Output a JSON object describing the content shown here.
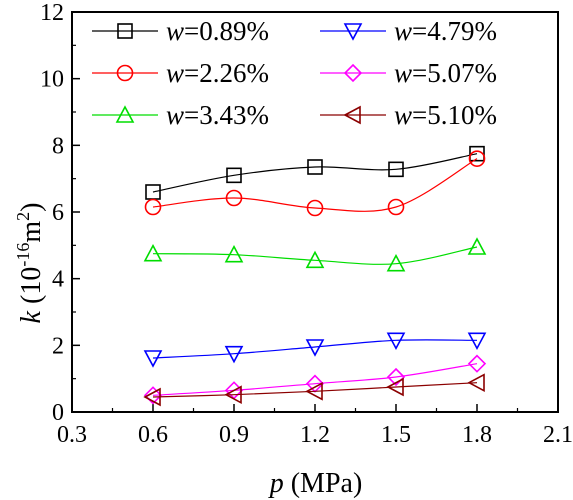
{
  "chart_data": {
    "type": "line",
    "xlabel": {
      "var": "p",
      "unit": " (MPa)"
    },
    "ylabel": {
      "var": "k",
      "unit_open": " (10",
      "exp1": "-16",
      "unit_mid": "m",
      "exp2": "2",
      "unit_close": ")"
    },
    "xlim": [
      0.3,
      2.1
    ],
    "ylim": [
      0,
      12
    ],
    "xticks": [
      "0.3",
      "0.6",
      "0.9",
      "1.2",
      "1.5",
      "1.8",
      "2.1"
    ],
    "yticks": [
      "0",
      "2",
      "4",
      "6",
      "8",
      "10",
      "12"
    ],
    "grid": false,
    "legend_position": "top",
    "x": [
      0.6,
      0.9,
      1.2,
      1.5,
      1.8
    ],
    "series": [
      {
        "name": "w=0.89%",
        "var": "w",
        "value": "=0.89%",
        "color": "#000000",
        "marker": "square",
        "values": [
          6.6,
          7.1,
          7.35,
          7.28,
          7.75
        ]
      },
      {
        "name": "w=2.26%",
        "var": "w",
        "value": "=2.26%",
        "color": "#ff0000",
        "marker": "circle",
        "values": [
          6.15,
          6.42,
          6.12,
          6.15,
          7.6
        ]
      },
      {
        "name": "w=3.43%",
        "var": "w",
        "value": "=3.43%",
        "color": "#00dd00",
        "marker": "triangle-up",
        "values": [
          4.75,
          4.72,
          4.55,
          4.45,
          4.95
        ]
      },
      {
        "name": "w=4.79%",
        "var": "w",
        "value": "=4.79%",
        "color": "#0000ff",
        "marker": "triangle-down",
        "values": [
          1.62,
          1.75,
          1.95,
          2.15,
          2.15
        ]
      },
      {
        "name": "w=5.07%",
        "var": "w",
        "value": "=5.07%",
        "color": "#ff00ff",
        "marker": "diamond",
        "values": [
          0.5,
          0.65,
          0.85,
          1.05,
          1.45
        ]
      },
      {
        "name": "w=5.10%",
        "var": "w",
        "value": "=5.10%",
        "color": "#8b0000",
        "marker": "triangle-left",
        "values": [
          0.45,
          0.52,
          0.62,
          0.75,
          0.88
        ]
      }
    ]
  }
}
